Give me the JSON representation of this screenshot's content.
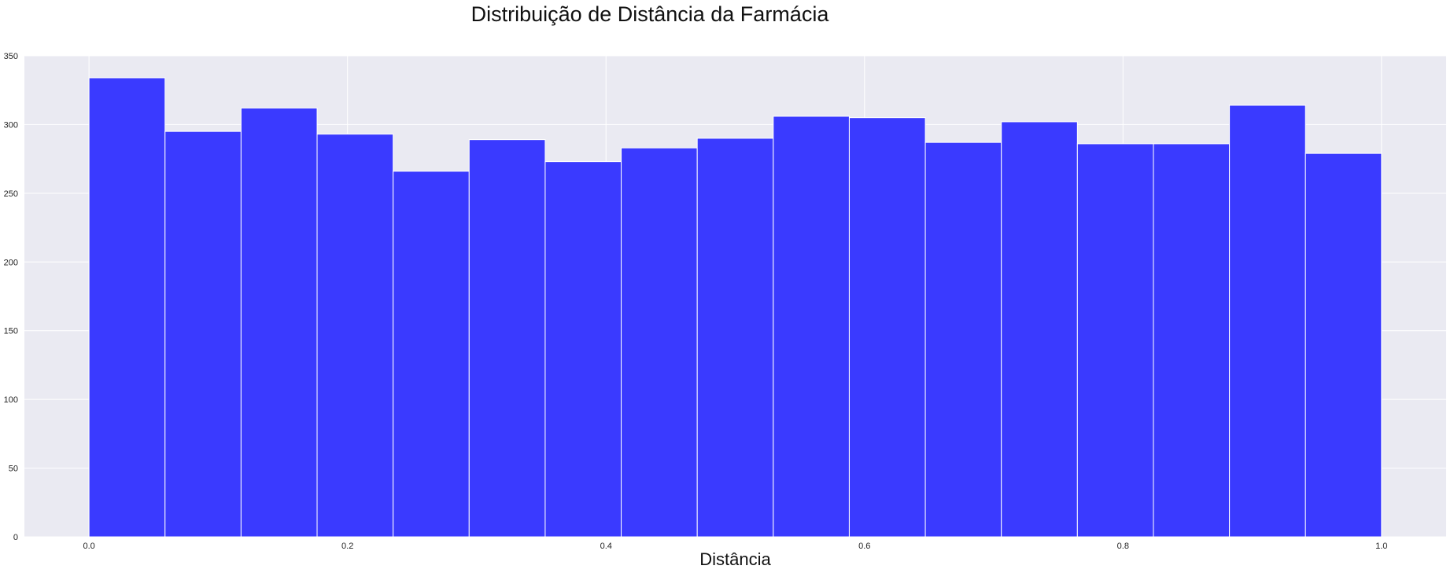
{
  "chart_data": {
    "type": "bar",
    "title": "Distribuição de Distância da Farmácia",
    "xlabel": "Distância",
    "ylabel": "",
    "xlim": [
      -0.05,
      1.05
    ],
    "ylim": [
      0,
      350
    ],
    "xticks": [
      0.0,
      0.2,
      0.4,
      0.6,
      0.8,
      1.0
    ],
    "xtick_labels": [
      "0.0",
      "0.2",
      "0.4",
      "0.6",
      "0.8",
      "1.0"
    ],
    "yticks": [
      0,
      50,
      100,
      150,
      200,
      250,
      300,
      350
    ],
    "ytick_labels": [
      "0",
      "50",
      "100",
      "150",
      "200",
      "250",
      "300",
      "350"
    ],
    "grid": true,
    "bin_range": [
      0.0,
      1.0
    ],
    "bins": 17,
    "values": [
      334,
      295,
      312,
      293,
      266,
      289,
      273,
      283,
      290,
      306,
      305,
      287,
      302,
      286,
      286,
      314,
      279
    ],
    "colors": {
      "bar": "#3a3aff",
      "bar_edge": "#ffffff",
      "plot_background": "#eaeaf2",
      "grid": "#ffffff"
    }
  }
}
